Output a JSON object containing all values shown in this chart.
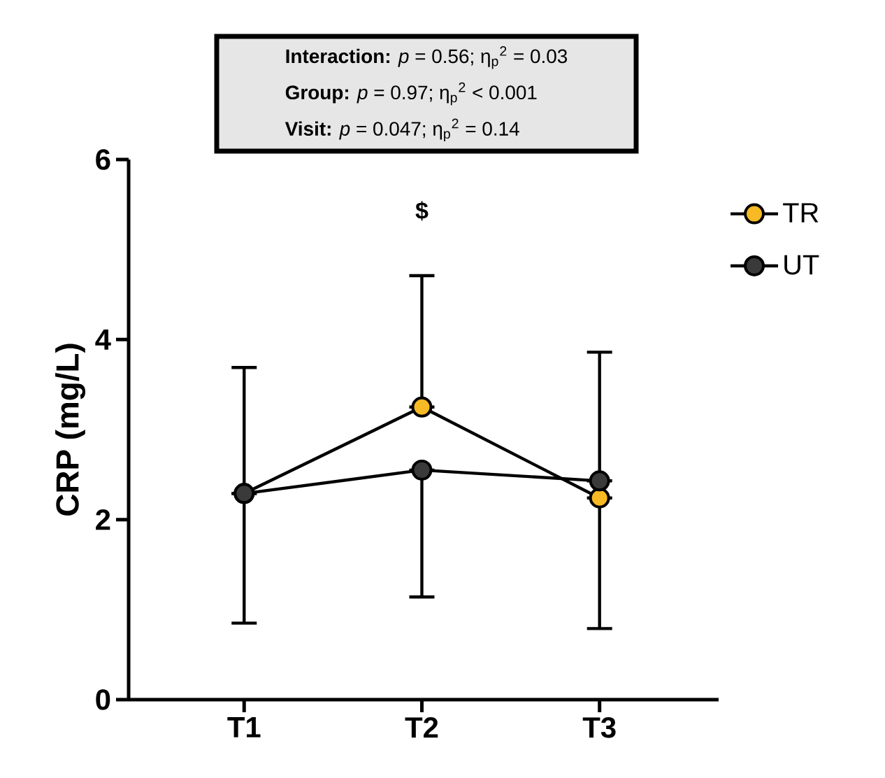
{
  "chart_data": {
    "type": "line",
    "ylabel": "CRP (mg/L)",
    "categories": [
      "T1",
      "T2",
      "T3"
    ],
    "series": [
      {
        "name": "TR",
        "color": "#f7b924",
        "values": [
          2.29,
          3.25,
          2.24
        ],
        "errors": [
          [
            2.29,
            3.69
          ],
          [
            3.25,
            4.71
          ],
          [
            0.79,
            2.24
          ]
        ]
      },
      {
        "name": "UT",
        "color": "#3a3a3a",
        "values": [
          2.29,
          2.55,
          2.43
        ],
        "errors": [
          [
            0.85,
            2.29
          ],
          [
            1.14,
            2.55
          ],
          [
            2.43,
            3.86
          ]
        ]
      }
    ],
    "ylim": [
      0,
      6
    ],
    "yticks": [
      0,
      2,
      4,
      6
    ],
    "grid": false,
    "legend": "right",
    "marker": "circle",
    "line_style": "solid",
    "annotations": [
      "**Interaction:** *p* = 0.56; η$_{p}$$^{2}$ = 0.03",
      "**Group:** *p* = 0.97; η$_{p}$$^{2}$ < 0.001",
      "**Visit:** *p* = 0.047; η$_{p}$$^{2}$ = 0.14",
      "$"
    ]
  }
}
